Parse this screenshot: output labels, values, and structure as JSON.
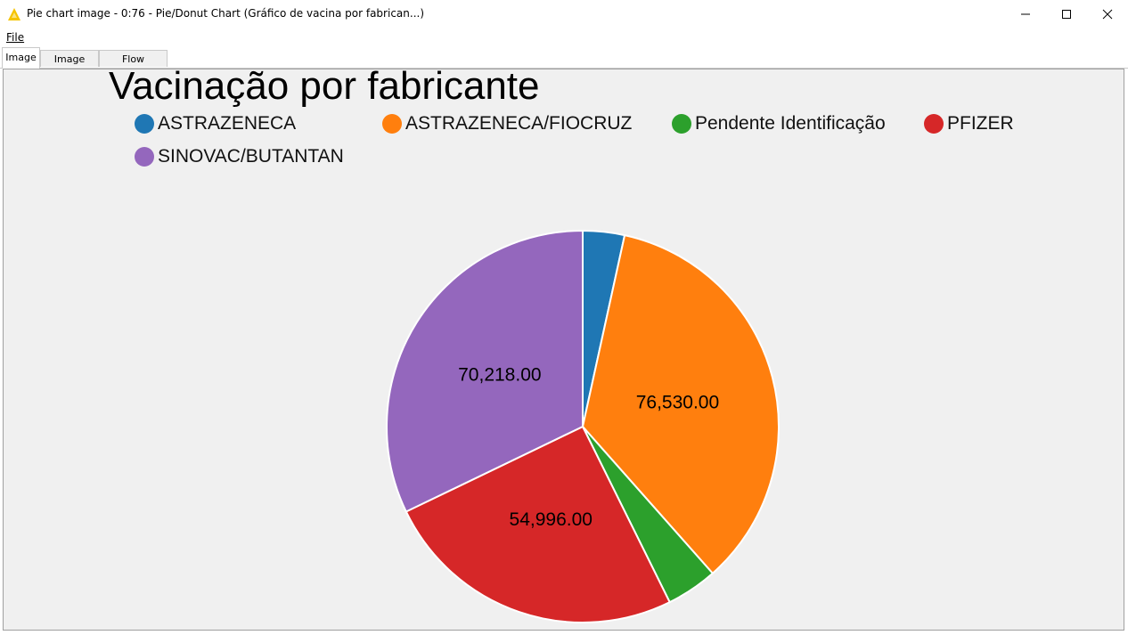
{
  "window": {
    "title": "Pie chart image - 0:76 - Pie/Donut Chart (Gráfico de vacina por fabrican...)",
    "icon": "knime-warning-triangle-icon"
  },
  "menu": {
    "file": "File"
  },
  "tabs": [
    {
      "label": "Image",
      "active": true
    },
    {
      "label": "Image Spec",
      "active": false
    },
    {
      "label": "Flow Variables",
      "active": false
    }
  ],
  "chart_data": {
    "type": "pie",
    "title": "Vacinação por fabricante",
    "legend_position": "top",
    "categories": [
      "ASTRAZENECA",
      "ASTRAZENECA/FIOCRUZ",
      "Pendente Identificação",
      "PFIZER",
      "SINOVAC/BUTANTAN"
    ],
    "values": [
      7500,
      76530,
      9200,
      54996,
      70218
    ],
    "colors": [
      "#1f77b4",
      "#ff7f0e",
      "#2ca02c",
      "#d62728",
      "#9467bd"
    ],
    "data_labels": [
      "",
      "76,530.00",
      "",
      "54,996.00",
      "70,218.00"
    ]
  }
}
